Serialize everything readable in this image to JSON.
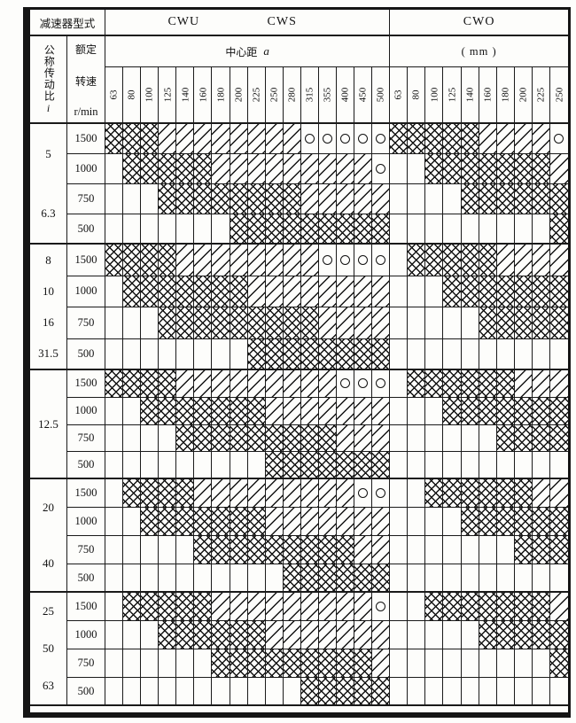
{
  "table": {
    "type_header": "减速器型式",
    "models": [
      "CWU",
      "CWS",
      "CWO"
    ],
    "ratio_header": {
      "chars": "公称传动比",
      "symbol": "i"
    },
    "speed_header": {
      "line1": "额定",
      "line2": "转速",
      "unit": "r/min"
    },
    "center_distance_label": "中心距",
    "center_distance_symbol": "a",
    "unit_label": "( mm )",
    "cwu_cws_columns": [
      "63",
      "80",
      "100",
      "125",
      "140",
      "160",
      "180",
      "200",
      "225",
      "250",
      "280",
      "315",
      "355",
      "400",
      "450",
      "500"
    ],
    "cwo_columns": [
      "63",
      "80",
      "100",
      "125",
      "140",
      "160",
      "180",
      "200",
      "225",
      "250"
    ],
    "pattern_legend": {
      "X": "crosshatch",
      "D": "diagonal-hatch",
      "O": "circle",
      "B": "blank"
    },
    "groups": [
      {
        "ratios": [
          "5",
          "6.3"
        ],
        "rows": [
          {
            "speed": "1500",
            "cwu_cws": "XXXDDDDDDDDOOOOO",
            "cwo": "XXXXXDDDDO"
          },
          {
            "speed": "1000",
            "cwu_cws": "BXXXXXDDDDDDDDDO",
            "cwo": "BBXXXXXXXD"
          },
          {
            "speed": "750",
            "cwu_cws": "BBBXXXXXXXXDDDDD",
            "cwo": "BBBBXXXXXX"
          },
          {
            "speed": "500",
            "cwu_cws": "BBBBBBBXXXXXXXXX",
            "cwo": "BBBBBBBBBX"
          }
        ]
      },
      {
        "ratios": [
          "8",
          "10",
          "16",
          "31.5"
        ],
        "rows": [
          {
            "speed": "1500",
            "cwu_cws": "XXXXDDDDDDDDOOOO",
            "cwo": "BXXXXXDDDD"
          },
          {
            "speed": "1000",
            "cwu_cws": "BXXXXXXXDDDDDDDD",
            "cwo": "BBBXXXXXXX"
          },
          {
            "speed": "750",
            "cwu_cws": "BBBXXXXXXXXXDDDD",
            "cwo": "BBBBBXXXXX"
          },
          {
            "speed": "500",
            "cwu_cws": "BBBBBBBBXXXXXXXX",
            "cwo": "BBBBBBBBBB"
          }
        ]
      },
      {
        "ratios": [
          "12.5"
        ],
        "rows": [
          {
            "speed": "1500",
            "cwu_cws": "XXXXDDDDDDDDDOOO",
            "cwo": "BXXXXXXDDD"
          },
          {
            "speed": "1000",
            "cwu_cws": "BBXXXXXXXDDDDDDD",
            "cwo": "BBBXXXXXXX"
          },
          {
            "speed": "750",
            "cwu_cws": "BBBBXXXXXXXXXDDD",
            "cwo": "BBBBBBXXXX"
          },
          {
            "speed": "500",
            "cwu_cws": "BBBBBBBBBXXXXXXX",
            "cwo": "BBBBBBBBBB"
          }
        ]
      },
      {
        "ratios": [
          "20",
          "40"
        ],
        "rows": [
          {
            "speed": "1500",
            "cwu_cws": "BXXXXDDDDDDDDDOO",
            "cwo": "BBXXXXXXDD"
          },
          {
            "speed": "1000",
            "cwu_cws": "BBXXXXXXXDDDDDDD",
            "cwo": "BBBBXXXXXX"
          },
          {
            "speed": "750",
            "cwu_cws": "BBBBBXXXXXXXXXDD",
            "cwo": "BBBBBBBXXX"
          },
          {
            "speed": "500",
            "cwu_cws": "BBBBBBBBBBXXXXXX",
            "cwo": "BBBBBBBBBB"
          }
        ]
      },
      {
        "ratios": [
          "25",
          "50",
          "63"
        ],
        "rows": [
          {
            "speed": "1500",
            "cwu_cws": "BXXXXXDDDDDDDDDO",
            "cwo": "BBXXXXXXXD"
          },
          {
            "speed": "1000",
            "cwu_cws": "BBBXXXXXXDDDDDDD",
            "cwo": "BBBBBXXXXX"
          },
          {
            "speed": "750",
            "cwu_cws": "BBBBBBXXXXXXXXXD",
            "cwo": "BBBBBBBBBX"
          },
          {
            "speed": "500",
            "cwu_cws": "BBBBBBBBBBBXXXXX",
            "cwo": "BBBBBBBBBB"
          }
        ]
      }
    ]
  }
}
